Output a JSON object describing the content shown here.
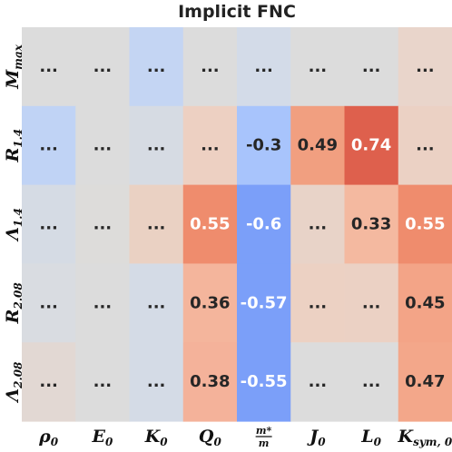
{
  "chart_data": {
    "type": "heatmap",
    "title": "Implicit FNC",
    "rows": [
      {
        "main": "M",
        "sub": "max"
      },
      {
        "main": "R",
        "sub": "1.4"
      },
      {
        "main": "Λ",
        "sub": "1.4"
      },
      {
        "main": "R",
        "sub": "2.08"
      },
      {
        "main": "Λ",
        "sub": "2.08"
      }
    ],
    "columns": [
      {
        "main": "ρ",
        "sub": "0"
      },
      {
        "main": "E",
        "sub": "0"
      },
      {
        "main": "K",
        "sub": "0"
      },
      {
        "main": "Q",
        "sub": "0"
      },
      {
        "main": "m*/m",
        "sub": ""
      },
      {
        "main": "J",
        "sub": "0"
      },
      {
        "main": "L",
        "sub": "0"
      },
      {
        "main": "K",
        "sub": "sym, 0"
      }
    ],
    "labels": [
      [
        "...",
        "...",
        "...",
        "...",
        "...",
        "...",
        "...",
        "..."
      ],
      [
        "...",
        "...",
        "...",
        "...",
        "-0.3",
        "0.49",
        "0.74",
        "..."
      ],
      [
        "...",
        "...",
        "...",
        "0.55",
        "-0.6",
        "...",
        "0.33",
        "0.55"
      ],
      [
        "...",
        "...",
        "...",
        "0.36",
        "-0.57",
        "...",
        "...",
        "0.45"
      ],
      [
        "...",
        "...",
        "...",
        "0.38",
        "-0.55",
        "...",
        "...",
        "0.47"
      ]
    ],
    "colors": [
      [
        "#dcdcdc",
        "#dcdcdc",
        "#c4d5f3",
        "#dcdcdc",
        "#d3dbe8",
        "#dcdcdc",
        "#dcdcdc",
        "#e9d5cb"
      ],
      [
        "#c0d3f5",
        "#dcdcdc",
        "#d6dbe3",
        "#edd0c2",
        "#a8c4fc",
        "#f19f80",
        "#de604d",
        "#ebd1c4"
      ],
      [
        "#d5dbe4",
        "#dddcda",
        "#ead1c3",
        "#ef8c6d",
        "#7b9ff9",
        "#e8d3c8",
        "#f4b9a0",
        "#ef8c6d"
      ],
      [
        "#d9dce1",
        "#dcdcdc",
        "#d4dbe6",
        "#f4b59c",
        "#7b9ff9",
        "#ecd1c3",
        "#ebd1c4",
        "#f3a487"
      ],
      [
        "#e2d8d3",
        "#dcdcdc",
        "#d4dbe6",
        "#f4b29a",
        "#7b9ff9",
        "#dcdcdc",
        "#dcdcdc",
        "#f3a78a"
      ]
    ],
    "text_colors": [
      [
        "#262626",
        "#262626",
        "#262626",
        "#262626",
        "#262626",
        "#262626",
        "#262626",
        "#262626"
      ],
      [
        "#262626",
        "#262626",
        "#262626",
        "#262626",
        "#262626",
        "#262626",
        "#ffffff",
        "#262626"
      ],
      [
        "#262626",
        "#262626",
        "#262626",
        "#ffffff",
        "#ffffff",
        "#262626",
        "#262626",
        "#ffffff"
      ],
      [
        "#262626",
        "#262626",
        "#262626",
        "#262626",
        "#ffffff",
        "#262626",
        "#262626",
        "#262626"
      ],
      [
        "#262626",
        "#262626",
        "#262626",
        "#262626",
        "#ffffff",
        "#262626",
        "#262626",
        "#262626"
      ]
    ],
    "colormap": "coolwarm",
    "grid": false,
    "legend": "none"
  }
}
